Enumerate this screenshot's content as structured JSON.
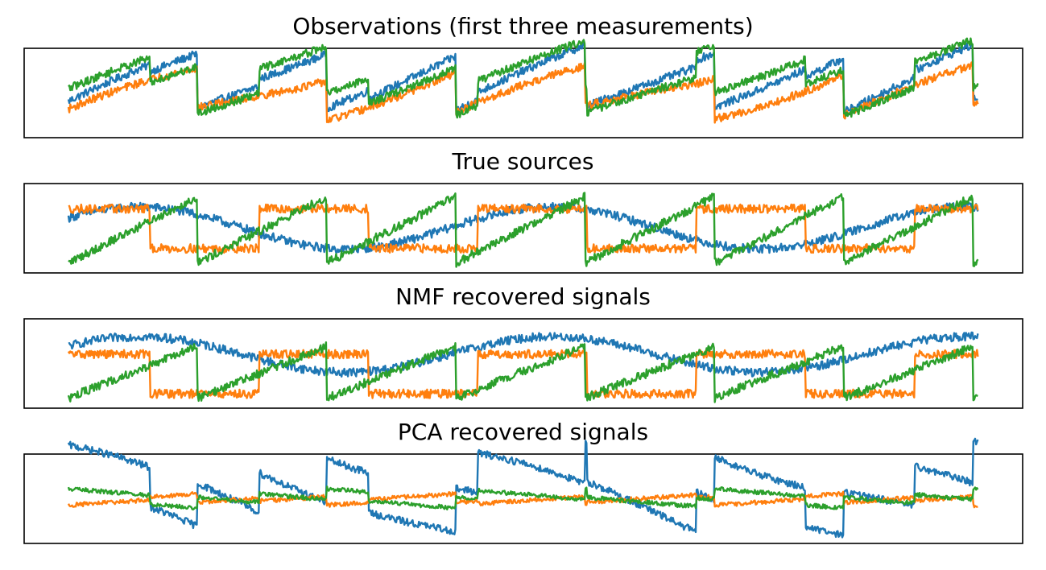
{
  "colors": {
    "series_1": "#1f77b4",
    "series_2": "#ff7f0e",
    "series_3": "#2ca02c",
    "frame": "#000000",
    "background": "#ffffff"
  },
  "chart_data": [
    {
      "type": "line",
      "title": "Observations (first three measurements)",
      "xlabel": "",
      "ylabel": "",
      "grid": false,
      "legend": "none",
      "ticks": "none",
      "xlim": [
        0,
        2000
      ],
      "ylim": [
        -0.12,
        1.12
      ],
      "series": [
        {
          "color": "#1f77b4",
          "components": [
            0.75,
            0.15,
            0.1
          ],
          "offset": 0.18,
          "noise": 0.055
        },
        {
          "color": "#ff7f0e",
          "components": [
            0.55,
            0.25,
            0.0
          ],
          "offset": 0.1,
          "noise": 0.055
        },
        {
          "color": "#2ca02c",
          "components": [
            0.65,
            0.1,
            0.35
          ],
          "offset": 0.14,
          "noise": 0.055
        }
      ]
    },
    {
      "type": "line",
      "title": "True sources",
      "xlabel": "",
      "ylabel": "",
      "grid": false,
      "legend": "none",
      "ticks": "none",
      "xlim": [
        0,
        2000
      ],
      "ylim": [
        -0.12,
        1.12
      ],
      "series": [
        {
          "color": "#1f77b4",
          "components": [
            0.0,
            1.0,
            0.0
          ],
          "offset": 0.18,
          "noise": 0.06,
          "scale": 0.65
        },
        {
          "color": "#ff7f0e",
          "components": [
            0.0,
            0.0,
            1.0
          ],
          "offset": 0.22,
          "noise": 0.06,
          "scale": 0.55
        },
        {
          "color": "#2ca02c",
          "components": [
            1.0,
            0.0,
            0.0
          ],
          "offset": 0.02,
          "noise": 0.06,
          "scale": 0.92
        }
      ]
    },
    {
      "type": "line",
      "title": "NMF recovered signals",
      "xlabel": "",
      "ylabel": "",
      "grid": false,
      "legend": "none",
      "ticks": "none",
      "xlim": [
        0,
        2000
      ],
      "ylim": [
        -0.12,
        1.12
      ],
      "series": [
        {
          "color": "#1f77b4",
          "components": [
            0.0,
            1.0,
            0.0
          ],
          "offset": 0.35,
          "noise": 0.06,
          "scale": 0.55
        },
        {
          "color": "#ff7f0e",
          "components": [
            0.0,
            0.0,
            1.0
          ],
          "offset": 0.08,
          "noise": 0.06,
          "scale": 0.55
        },
        {
          "color": "#2ca02c",
          "components": [
            1.0,
            0.0,
            0.0
          ],
          "offset": 0.02,
          "noise": 0.06,
          "scale": 0.72
        }
      ]
    },
    {
      "type": "line",
      "title": "PCA recovered signals",
      "xlabel": "",
      "ylabel": "",
      "grid": false,
      "legend": "none",
      "ticks": "none",
      "xlim": [
        0,
        2000
      ],
      "ylim": [
        -0.12,
        1.12
      ],
      "series": [
        {
          "color": "#1f77b4",
          "components": [
            -0.6,
            0.3,
            0.55
          ],
          "offset": 0.48,
          "noise": 0.05,
          "scale": 1.0
        },
        {
          "color": "#ff7f0e",
          "components": [
            0.12,
            0.0,
            -0.04
          ],
          "offset": 0.45,
          "noise": 0.03,
          "scale": 1.0
        },
        {
          "color": "#2ca02c",
          "components": [
            -0.15,
            0.0,
            0.12
          ],
          "offset": 0.52,
          "noise": 0.03,
          "scale": 1.0
        }
      ]
    }
  ]
}
